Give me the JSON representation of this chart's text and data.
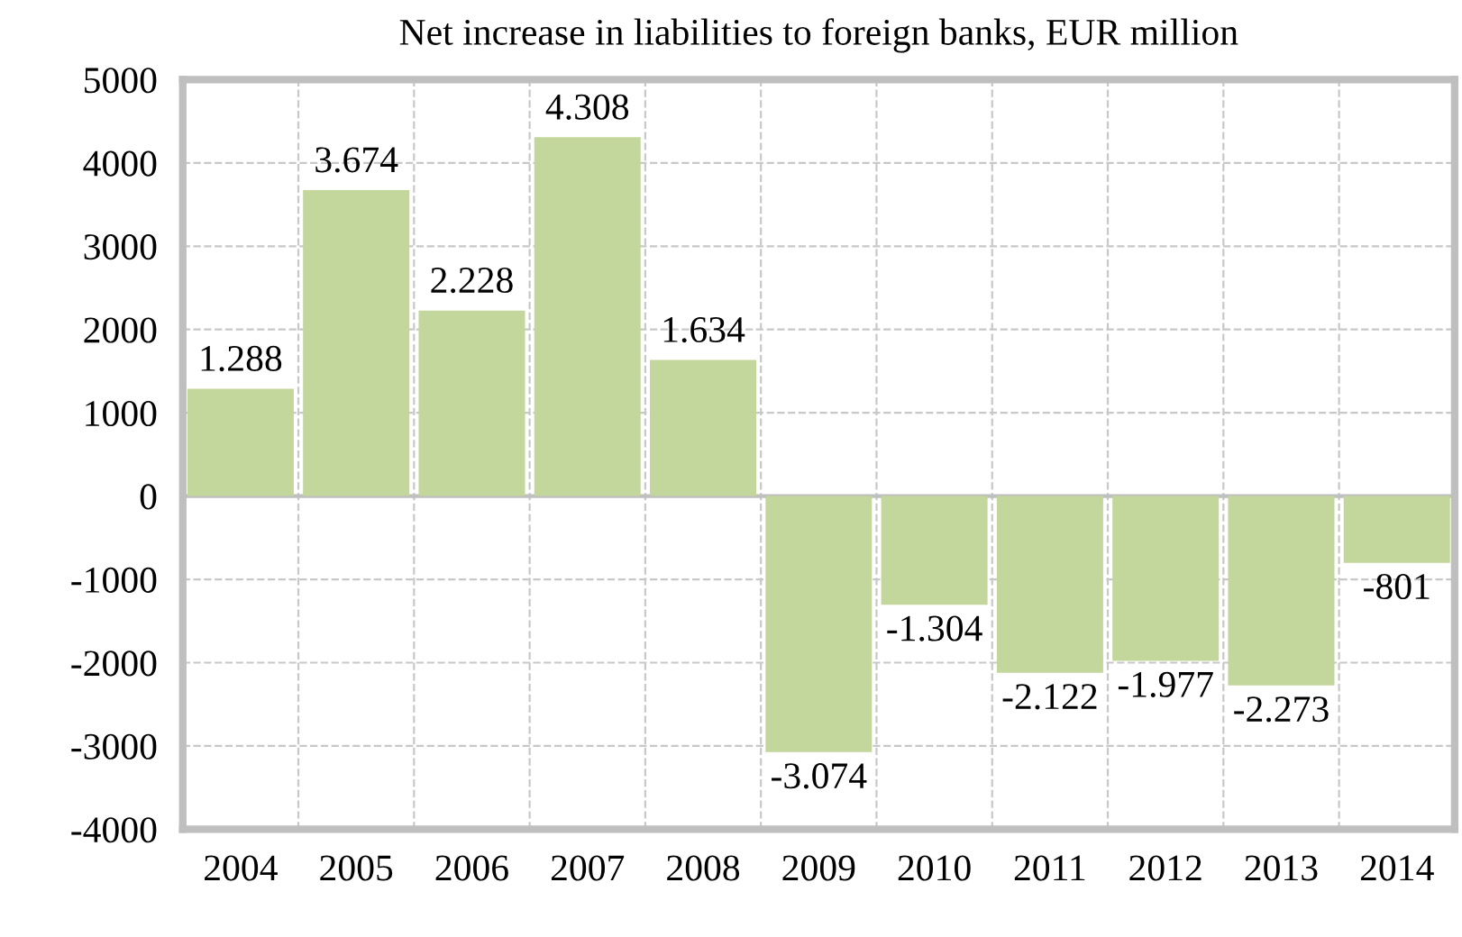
{
  "chart_data": {
    "type": "bar",
    "title": "Net increase in liabilities to foreign banks, EUR million",
    "categories": [
      "2004",
      "2005",
      "2006",
      "2007",
      "2008",
      "2009",
      "2010",
      "2011",
      "2012",
      "2013",
      "2014"
    ],
    "values": [
      1288,
      3674,
      2228,
      4308,
      1634,
      -3074,
      -1304,
      -2122,
      -1977,
      -2273,
      -801
    ],
    "value_labels": [
      "1.288",
      "3.674",
      "2.228",
      "4.308",
      "1.634",
      "-3.074",
      "-1.304",
      "-2.122",
      "-1.977",
      "-2.273",
      "-801"
    ],
    "color": "#c3d69b",
    "ylim": [
      -4000,
      5000
    ],
    "yticks": [
      -4000,
      -3000,
      -2000,
      -1000,
      0,
      1000,
      2000,
      3000,
      4000,
      5000
    ],
    "grid": true
  }
}
